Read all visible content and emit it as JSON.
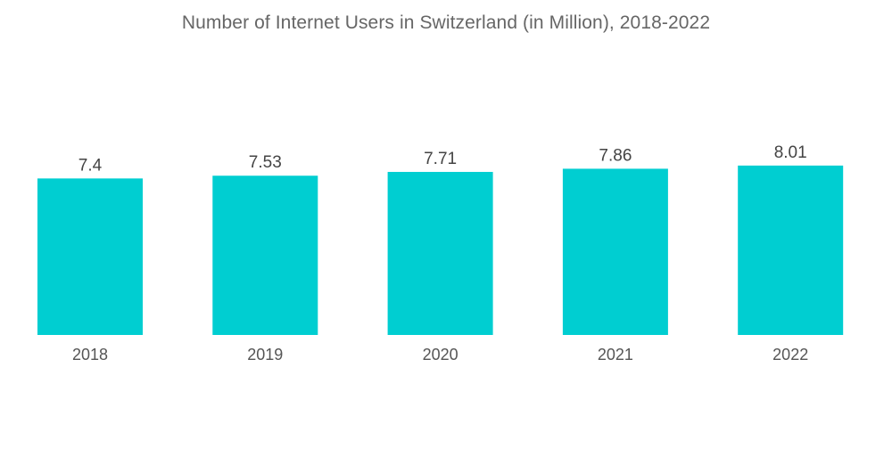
{
  "chart_data": {
    "type": "bar",
    "title": "Number of Internet Users in Switzerland (in Million), 2018-2022",
    "xlabel": "",
    "ylabel": "",
    "categories": [
      "2018",
      "2019",
      "2020",
      "2021",
      "2022"
    ],
    "values": [
      7.4,
      7.53,
      7.71,
      7.86,
      8.01
    ],
    "data_labels": [
      "7.4",
      "7.53",
      "7.71",
      "7.86",
      "8.01"
    ],
    "ylim": [
      0,
      8.01
    ],
    "grid": false,
    "legend": "none",
    "bar_color": "#00CED1"
  }
}
